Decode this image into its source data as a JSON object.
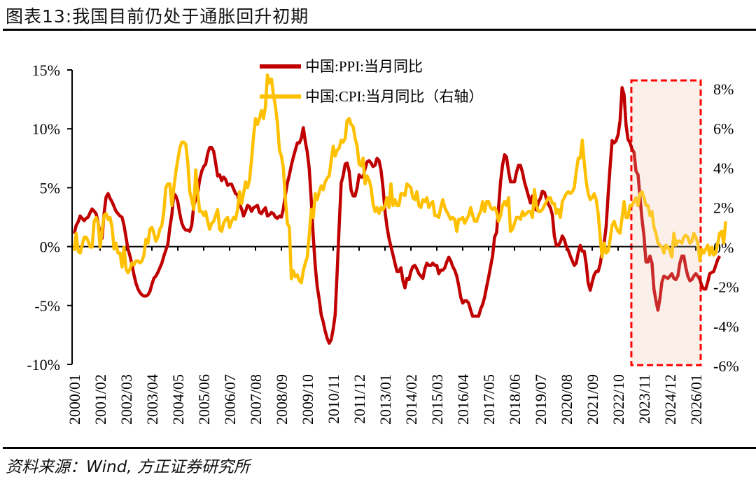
{
  "header": {
    "title": "图表13:我国目前仍处于通胀回升初期"
  },
  "footer": {
    "source": "资料来源：Wind, 方正证券研究所"
  },
  "colors": {
    "ppi": "#C00000",
    "cpi": "#FFC000",
    "highlight_border": "#FF0000",
    "highlight_fill": "#FBF0EA"
  },
  "chart_data": {
    "type": "line",
    "title": "图表13:我国目前仍处于通胀回升初期",
    "xlabel": "",
    "ylabel": "",
    "x_start": "2000/01",
    "x_end": "2026/01",
    "x_ticks": [
      "2000/01",
      "2001/02",
      "2002/03",
      "2003/04",
      "2004/05",
      "2005/06",
      "2006/07",
      "2007/08",
      "2008/09",
      "2009/10",
      "2010/11",
      "2011/12",
      "2013/01",
      "2014/02",
      "2015/03",
      "2016/04",
      "2017/05",
      "2018/06",
      "2019/07",
      "2020/08",
      "2021/09",
      "2022/10",
      "2023/11",
      "2024/12",
      "2026/01"
    ],
    "y_left": {
      "ylim": [
        -10,
        15
      ],
      "ticks": [
        -10,
        -5,
        0,
        5,
        10,
        15
      ],
      "tick_labels": [
        "-10%",
        "-5%",
        "0%",
        "5%",
        "10%",
        "15%"
      ]
    },
    "y_right": {
      "ylim": [
        -6,
        8
      ],
      "ticks": [
        -6,
        -4,
        -2,
        0,
        2,
        4,
        6,
        8
      ],
      "tick_labels": [
        "-6%",
        "-4%",
        "-2%",
        "0%",
        "2%",
        "4%",
        "6%",
        "8%"
      ]
    },
    "legend": {
      "placement": "top-center",
      "entries": [
        "中国:PPI:当月同比",
        "中国:CPI:当月同比（右轴）"
      ]
    },
    "highlight": {
      "from": "2023/05",
      "to": "2026/01",
      "style": "dashed-box"
    },
    "grid": false,
    "series": [
      {
        "name": "中国:PPI:当月同比",
        "axis": "left",
        "values": [
          1.1,
          1.8,
          2.1,
          2.6,
          2.4,
          2.2,
          2.4,
          2.5,
          2.9,
          3.2,
          3.0,
          2.8,
          2.0,
          1.0,
          0.7,
          2.8,
          4.2,
          4.5,
          4.1,
          3.8,
          3.4,
          3.0,
          2.8,
          2.6,
          2.5,
          1.8,
          0.8,
          -0.2,
          -0.8,
          -1.5,
          -2.4,
          -3.1,
          -3.6,
          -3.9,
          -4.1,
          -4.2,
          -4.2,
          -4.1,
          -3.8,
          -3.2,
          -2.7,
          -2.5,
          -2.2,
          -1.8,
          -1.4,
          -0.8,
          -0.3,
          0.2,
          1.6,
          2.7,
          4.5,
          4.3,
          3.8,
          2.8,
          2.0,
          1.6,
          1.4,
          1.4,
          1.3,
          1.8,
          3.5,
          4.0,
          4.6,
          5.7,
          6.4,
          6.8,
          7.0,
          7.9,
          8.4,
          8.4,
          8.1,
          7.1,
          6.0,
          6.1,
          5.6,
          5.9,
          5.7,
          5.2,
          5.3,
          5.3,
          4.9,
          4.5,
          4.4,
          3.6,
          3.2,
          2.6,
          3.0,
          3.5,
          3.4,
          3.0,
          3.3,
          3.4,
          3.5,
          2.9,
          2.8,
          3.1,
          3.3,
          2.6,
          2.7,
          2.9,
          2.8,
          2.5,
          2.4,
          2.6,
          2.5,
          3.2,
          4.4,
          5.4,
          6.1,
          6.9,
          7.6,
          8.2,
          8.8,
          8.8,
          9.2,
          10.1,
          8.9,
          8.0,
          6.6,
          3.9,
          0.9,
          -1.7,
          -3.4,
          -4.5,
          -5.8,
          -6.4,
          -7.2,
          -7.8,
          -8.2,
          -7.9,
          -7.0,
          -5.8,
          -2.1,
          1.7,
          5.4,
          6.0,
          7.0,
          7.1,
          6.4,
          4.8,
          4.3,
          4.3,
          5.0,
          6.1,
          5.9,
          5.9,
          6.6,
          7.2,
          7.3,
          7.1,
          6.8,
          6.9,
          7.5,
          7.3,
          6.5,
          5.0,
          3.0,
          1.7,
          0.7,
          0.0,
          -0.7,
          -1.4,
          -2.1,
          -2.1,
          -1.8,
          -2.9,
          -3.5,
          -2.7,
          -2.8,
          -2.1,
          -1.7,
          -1.6,
          -1.9,
          -2.3,
          -2.5,
          -2.7,
          -1.9,
          -1.4,
          -1.6,
          -1.6,
          -1.4,
          -1.6,
          -1.6,
          -2.3,
          -2.0,
          -2.0,
          -1.8,
          -1.3,
          -0.9,
          -1.2,
          -1.7,
          -2.0,
          -2.5,
          -3.3,
          -4.3,
          -4.8,
          -4.6,
          -4.6,
          -4.8,
          -5.4,
          -5.9,
          -5.9,
          -5.9,
          -5.9,
          -5.3,
          -4.9,
          -4.3,
          -3.4,
          -2.6,
          -1.7,
          -0.8,
          0.8,
          1.2,
          3.3,
          5.5,
          6.9,
          7.8,
          7.6,
          6.4,
          5.5,
          5.5,
          5.5,
          6.3,
          6.9,
          6.9,
          6.3,
          5.5,
          4.9,
          4.3,
          3.7,
          4.3,
          3.4,
          3.1,
          3.8,
          4.1,
          4.7,
          4.6,
          4.1,
          3.6,
          3.3,
          2.7,
          0.9,
          0.1,
          0.1,
          0.4,
          0.9,
          0.6,
          0.0,
          -0.3,
          -0.8,
          -1.2,
          -1.6,
          -1.4,
          -0.5,
          0.1,
          -0.4,
          -0.4,
          -1.5,
          -3.1,
          -3.7,
          -3.0,
          -2.4,
          -2.1,
          -2.1,
          -1.5,
          -0.4,
          0.3,
          1.7,
          4.4,
          6.8,
          9.0,
          8.8,
          9.0,
          9.5,
          10.7,
          13.5,
          12.9,
          10.3,
          9.1,
          8.8,
          8.3,
          8.0,
          6.4,
          6.1,
          4.2,
          2.3,
          0.9,
          -1.3,
          -1.3,
          -0.8,
          -1.4,
          -3.6,
          -4.6,
          -5.4,
          -4.4,
          -3.0,
          -2.5,
          -2.6,
          -2.7,
          -2.5,
          -2.3,
          -2.7,
          -2.8,
          -2.5,
          -1.4,
          -0.8,
          -0.8,
          -1.8,
          -2.5,
          -2.9,
          -2.8,
          -2.5,
          -2.3,
          -2.5,
          -2.8,
          -3.3,
          -3.6,
          -3.6,
          -3.0,
          -2.3,
          -2.2,
          -2.1,
          -1.6,
          -1.1,
          -0.8
        ]
      },
      {
        "name": "中国:CPI:当月同比（右轴）",
        "axis": "right",
        "values": [
          -0.2,
          0.7,
          -0.2,
          -0.3,
          0.1,
          0.5,
          0.5,
          0.3,
          0.0,
          0.0,
          1.3,
          1.5,
          1.2,
          0.0,
          0.8,
          1.6,
          1.7,
          1.4,
          1.5,
          1.0,
          -0.1,
          0.2,
          -0.3,
          -0.3,
          -1.0,
          0.0,
          -1.1,
          -1.3,
          -1.1,
          -0.8,
          -0.9,
          -0.7,
          -0.7,
          -0.8,
          -0.7,
          -0.4,
          0.4,
          0.2,
          0.9,
          1.0,
          0.7,
          0.3,
          0.5,
          0.9,
          1.1,
          1.8,
          3.0,
          3.2,
          3.2,
          2.1,
          3.0,
          3.8,
          4.4,
          5.0,
          5.3,
          5.3,
          5.2,
          4.3,
          2.8,
          2.4,
          1.9,
          3.9,
          2.7,
          1.8,
          1.8,
          1.6,
          1.8,
          1.3,
          0.9,
          1.2,
          1.3,
          1.6,
          1.9,
          0.9,
          0.8,
          1.2,
          1.4,
          1.5,
          1.0,
          1.3,
          1.5,
          1.4,
          1.9,
          2.8,
          2.2,
          2.7,
          3.3,
          3.0,
          3.4,
          4.4,
          5.6,
          6.5,
          6.2,
          6.5,
          6.9,
          6.5,
          7.1,
          8.7,
          8.3,
          8.5,
          7.7,
          7.1,
          6.3,
          4.9,
          4.6,
          4.0,
          2.4,
          1.2,
          1.0,
          -1.6,
          -1.2,
          -1.5,
          -1.4,
          -1.7,
          -1.8,
          -1.2,
          -0.8,
          -0.5,
          0.6,
          1.9,
          1.5,
          2.7,
          2.4,
          2.8,
          3.1,
          2.9,
          3.3,
          3.5,
          3.6,
          4.4,
          5.1,
          4.6,
          4.9,
          5.0,
          5.4,
          5.3,
          5.5,
          6.4,
          6.5,
          6.2,
          6.1,
          5.5,
          5.1,
          4.2,
          4.1,
          4.5,
          3.2,
          3.6,
          3.4,
          3.0,
          2.2,
          1.8,
          2.0,
          1.7,
          2.0,
          1.9,
          2.1,
          2.5,
          2.0,
          3.2,
          2.1,
          2.4,
          2.1,
          2.1,
          2.7,
          2.7,
          2.6,
          3.2,
          3.1,
          3.0,
          2.5,
          2.4,
          2.8,
          2.1,
          2.0,
          2.4,
          2.3,
          2.5,
          2.0,
          2.2,
          2.3,
          1.6,
          1.6,
          1.5,
          2.0,
          2.4,
          2.0,
          1.8,
          1.6,
          1.4,
          1.5,
          1.4,
          0.8,
          1.4,
          1.4,
          1.5,
          1.2,
          1.4,
          1.6,
          2.0,
          1.6,
          1.3,
          1.3,
          1.6,
          1.8,
          2.3,
          1.8,
          2.3,
          2.3,
          2.0,
          1.9,
          2.0,
          1.8,
          1.3,
          1.6,
          2.1,
          2.3,
          2.1,
          2.5,
          0.8,
          0.9,
          1.2,
          1.5,
          1.5,
          1.4,
          1.8,
          1.6,
          1.7,
          1.8,
          1.8,
          1.5,
          2.9,
          2.1,
          1.8,
          1.8,
          1.9,
          2.1,
          2.3,
          2.5,
          2.5,
          2.2,
          2.2,
          1.7,
          1.9,
          1.5,
          2.3,
          2.5,
          2.7,
          2.8,
          2.7,
          2.8,
          3.0,
          3.8,
          4.5,
          4.5,
          5.4,
          4.3,
          3.3,
          2.7,
          2.4,
          2.5,
          2.7,
          2.4,
          1.7,
          0.5,
          -0.5,
          0.2,
          -0.3,
          -0.2,
          0.4,
          1.1,
          1.3,
          1.0,
          0.8,
          0.7,
          1.5,
          2.3,
          1.5,
          1.5,
          2.1,
          2.1,
          2.3,
          2.5,
          2.1,
          2.7,
          2.8,
          2.5,
          2.1,
          2.1,
          1.6,
          1.8,
          1.0,
          0.7,
          0.2,
          0.1,
          0.0,
          -0.3,
          0.1,
          0.0,
          -0.2,
          -0.5,
          0.7,
          0.1,
          0.3,
          0.3,
          0.2,
          0.5,
          0.6,
          0.5,
          0.2,
          0.3,
          0.7,
          0.5,
          0.2,
          -0.7,
          -0.1,
          -0.3,
          -0.1,
          0.1,
          -0.4,
          0.0,
          -0.4,
          -0.3,
          0.2,
          0.7,
          0.8,
          0.2,
          1.3
        ]
      }
    ]
  }
}
